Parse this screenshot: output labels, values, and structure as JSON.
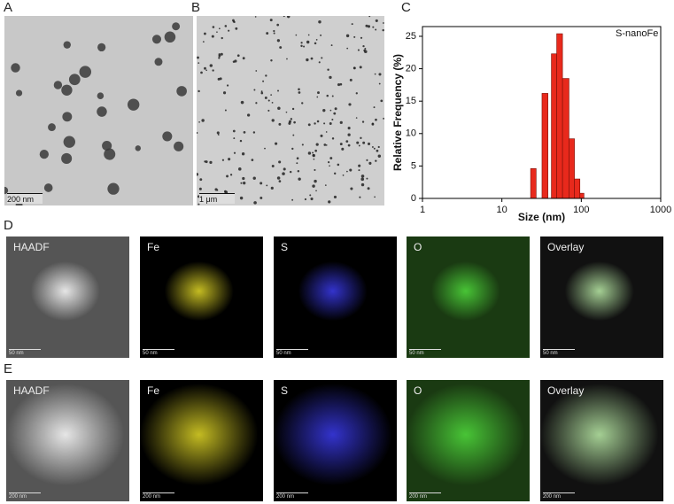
{
  "panel_labels": [
    "A",
    "B",
    "C",
    "D",
    "E"
  ],
  "panel_a": {
    "scale_bar": "200 nm"
  },
  "panel_b": {
    "scale_bar": "1 μm"
  },
  "panel_d": {
    "maps": [
      {
        "label": "HAADF",
        "scale_bar": "50 nm"
      },
      {
        "label": "Fe",
        "scale_bar": "50 nm"
      },
      {
        "label": "S",
        "scale_bar": "50 nm"
      },
      {
        "label": "O",
        "scale_bar": "50 nm"
      },
      {
        "label": "Overlay",
        "scale_bar": "50 nm"
      }
    ]
  },
  "panel_e": {
    "maps": [
      {
        "label": "HAADF",
        "scale_bar": "200 nm"
      },
      {
        "label": "Fe",
        "scale_bar": "200 nm"
      },
      {
        "label": "S",
        "scale_bar": "200 nm"
      },
      {
        "label": "O",
        "scale_bar": "200 nm"
      },
      {
        "label": "Overlay",
        "scale_bar": "200 nm"
      }
    ]
  },
  "chart_data": {
    "type": "histogram",
    "annotation": "S-nanoFe",
    "x_label": "Size (nm)",
    "y_label": "Relative Frequency (%)",
    "bins": [
      23,
      27,
      32,
      38,
      42,
      49,
      58,
      70,
      82,
      96,
      108
    ],
    "values": [
      4.6,
      0,
      16.2,
      0,
      22.3,
      25.4,
      18.5,
      9.2,
      3.0,
      0.8
    ],
    "color": "#e8291c",
    "xlim": [
      1,
      1000
    ],
    "xticks": [
      1,
      10,
      100,
      1000
    ],
    "x_log": true,
    "ylim": [
      0,
      26.5
    ],
    "yticks": [
      0,
      5,
      10,
      15,
      20,
      25
    ]
  }
}
